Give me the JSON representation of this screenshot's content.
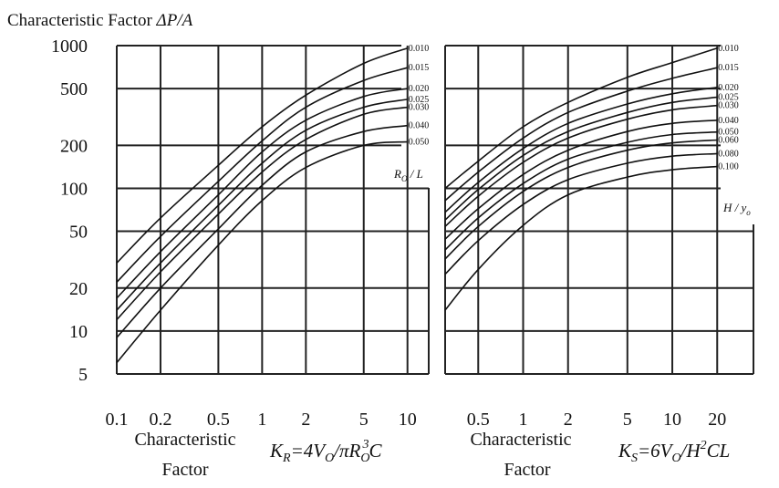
{
  "title": "Characteristic Factor ",
  "title_symbol": "ΔP/A",
  "y_ticks": [
    "1000",
    "500",
    "200",
    "100",
    "50",
    "20",
    "10",
    "5"
  ],
  "chart_data": [
    {
      "type": "line",
      "x_scale": "log",
      "y_scale": "log",
      "xlim": [
        0.1,
        14
      ],
      "ylim": [
        5,
        1000
      ],
      "x_ticks": [
        "0.1",
        "0.2",
        "0.5",
        "1",
        "2",
        "5",
        "10"
      ],
      "x_tick_values": [
        0.1,
        0.2,
        0.5,
        1,
        2,
        5,
        10
      ],
      "x_grid": [
        0.1,
        0.2,
        0.5,
        1,
        2,
        5,
        10
      ],
      "y_grid": [
        5,
        10,
        20,
        50,
        100,
        200,
        500,
        1000
      ],
      "grid": true,
      "xlabel_line1": "Characteristic",
      "xlabel_line2": "Factor",
      "formula": {
        "K": "K",
        "sub": "R",
        "rest1": "=4V",
        "sub2": "O",
        "rest2": "/πR",
        "sub3": "O",
        "sup": "3",
        "rest3": "C"
      },
      "param": {
        "a": "R",
        "sub": "O",
        "b": " / L"
      },
      "series": [
        {
          "name": "0.010",
          "values": [
            [
              0.1,
              30
            ],
            [
              0.2,
              62
            ],
            [
              0.5,
              145
            ],
            [
              1,
              270
            ],
            [
              2,
              450
            ],
            [
              5,
              750
            ],
            [
              10,
              960
            ]
          ]
        },
        {
          "name": "0.015",
          "values": [
            [
              0.1,
              22
            ],
            [
              0.2,
              46
            ],
            [
              0.5,
              112
            ],
            [
              1,
              215
            ],
            [
              2,
              370
            ],
            [
              5,
              570
            ],
            [
              10,
              700
            ]
          ]
        },
        {
          "name": "0.020",
          "values": [
            [
              0.1,
              17
            ],
            [
              0.2,
              36
            ],
            [
              0.5,
              90
            ],
            [
              1,
              180
            ],
            [
              2,
              300
            ],
            [
              5,
              440
            ],
            [
              10,
              500
            ]
          ]
        },
        {
          "name": "0.025",
          "values": [
            [
              0.1,
              14
            ],
            [
              0.2,
              30
            ],
            [
              0.5,
              76
            ],
            [
              1,
              150
            ],
            [
              2,
              255
            ],
            [
              5,
              370
            ],
            [
              10,
              420
            ]
          ]
        },
        {
          "name": "0.030",
          "values": [
            [
              0.1,
              12
            ],
            [
              0.2,
              26
            ],
            [
              0.5,
              66
            ],
            [
              1,
              130
            ],
            [
              2,
              220
            ],
            [
              5,
              330
            ],
            [
              10,
              370
            ]
          ]
        },
        {
          "name": "0.040",
          "values": [
            [
              0.1,
              9
            ],
            [
              0.2,
              20
            ],
            [
              0.5,
              52
            ],
            [
              1,
              105
            ],
            [
              2,
              180
            ],
            [
              5,
              250
            ],
            [
              10,
              275
            ]
          ]
        },
        {
          "name": "0.050",
          "values": [
            [
              0.1,
              6
            ],
            [
              0.2,
              14
            ],
            [
              0.5,
              40
            ],
            [
              1,
              82
            ],
            [
              2,
              140
            ],
            [
              5,
              200
            ],
            [
              10,
              212
            ]
          ]
        }
      ]
    },
    {
      "type": "line",
      "x_scale": "log",
      "y_scale": "log",
      "xlim": [
        0.3,
        35
      ],
      "ylim": [
        5,
        1000
      ],
      "x_ticks": [
        "0.5",
        "1",
        "2",
        "5",
        "10",
        "20"
      ],
      "x_tick_values": [
        0.5,
        1,
        2,
        5,
        10,
        20
      ],
      "x_grid": [
        0.3,
        0.5,
        1,
        2,
        5,
        10,
        20
      ],
      "y_grid": [
        5,
        10,
        20,
        50,
        100,
        200,
        500,
        1000
      ],
      "grid": true,
      "xlabel_line1": "Characteristic",
      "xlabel_line2": "Factor",
      "formula": {
        "K": "K",
        "sub": "S",
        "rest1": "=6V",
        "sub2": "O",
        "rest2": "/H",
        "sup": "2",
        "rest3": "CL"
      },
      "param": {
        "a": "H",
        "b": " / y",
        "sub": "o"
      },
      "series": [
        {
          "name": "0.010",
          "values": [
            [
              0.3,
              100
            ],
            [
              0.5,
              155
            ],
            [
              1,
              270
            ],
            [
              2,
              400
            ],
            [
              5,
              600
            ],
            [
              10,
              760
            ],
            [
              20,
              960
            ]
          ]
        },
        {
          "name": "0.015",
          "values": [
            [
              0.3,
              82
            ],
            [
              0.5,
              130
            ],
            [
              1,
              225
            ],
            [
              2,
              340
            ],
            [
              5,
              480
            ],
            [
              10,
              590
            ],
            [
              20,
              700
            ]
          ]
        },
        {
          "name": "0.020",
          "values": [
            [
              0.3,
              68
            ],
            [
              0.5,
              110
            ],
            [
              1,
              190
            ],
            [
              2,
              285
            ],
            [
              5,
              390
            ],
            [
              10,
              460
            ],
            [
              20,
              510
            ]
          ]
        },
        {
          "name": "0.025",
          "values": [
            [
              0.3,
              60
            ],
            [
              0.5,
              98
            ],
            [
              1,
              170
            ],
            [
              2,
              250
            ],
            [
              5,
              340
            ],
            [
              10,
              400
            ],
            [
              20,
              435
            ]
          ]
        },
        {
          "name": "0.030",
          "values": [
            [
              0.3,
              54
            ],
            [
              0.5,
              88
            ],
            [
              1,
              152
            ],
            [
              2,
              225
            ],
            [
              5,
              305
            ],
            [
              10,
              355
            ],
            [
              20,
              380
            ]
          ]
        },
        {
          "name": "0.040",
          "values": [
            [
              0.3,
              44
            ],
            [
              0.5,
              72
            ],
            [
              1,
              125
            ],
            [
              2,
              185
            ],
            [
              5,
              250
            ],
            [
              10,
              285
            ],
            [
              20,
              300
            ]
          ]
        },
        {
          "name": "0.050",
          "values": [
            [
              0.3,
              37
            ],
            [
              0.5,
              62
            ],
            [
              1,
              108
            ],
            [
              2,
              160
            ],
            [
              5,
              210
            ],
            [
              10,
              238
            ],
            [
              20,
              248
            ]
          ]
        },
        {
          "name": "0.060",
          "values": [
            [
              0.3,
              32
            ],
            [
              0.5,
              54
            ],
            [
              1,
              95
            ],
            [
              2,
              140
            ],
            [
              5,
              185
            ],
            [
              10,
              208
            ],
            [
              20,
              218
            ]
          ]
        },
        {
          "name": "0.080",
          "values": [
            [
              0.3,
              25
            ],
            [
              0.5,
              43
            ],
            [
              1,
              77
            ],
            [
              2,
              115
            ],
            [
              5,
              150
            ],
            [
              10,
              168
            ],
            [
              20,
              175
            ]
          ]
        },
        {
          "name": "0.100",
          "values": [
            [
              0.3,
              14
            ],
            [
              0.5,
              27
            ],
            [
              1,
              55
            ],
            [
              2,
              90
            ],
            [
              5,
              120
            ],
            [
              10,
              135
            ],
            [
              20,
              142
            ]
          ]
        }
      ]
    }
  ]
}
